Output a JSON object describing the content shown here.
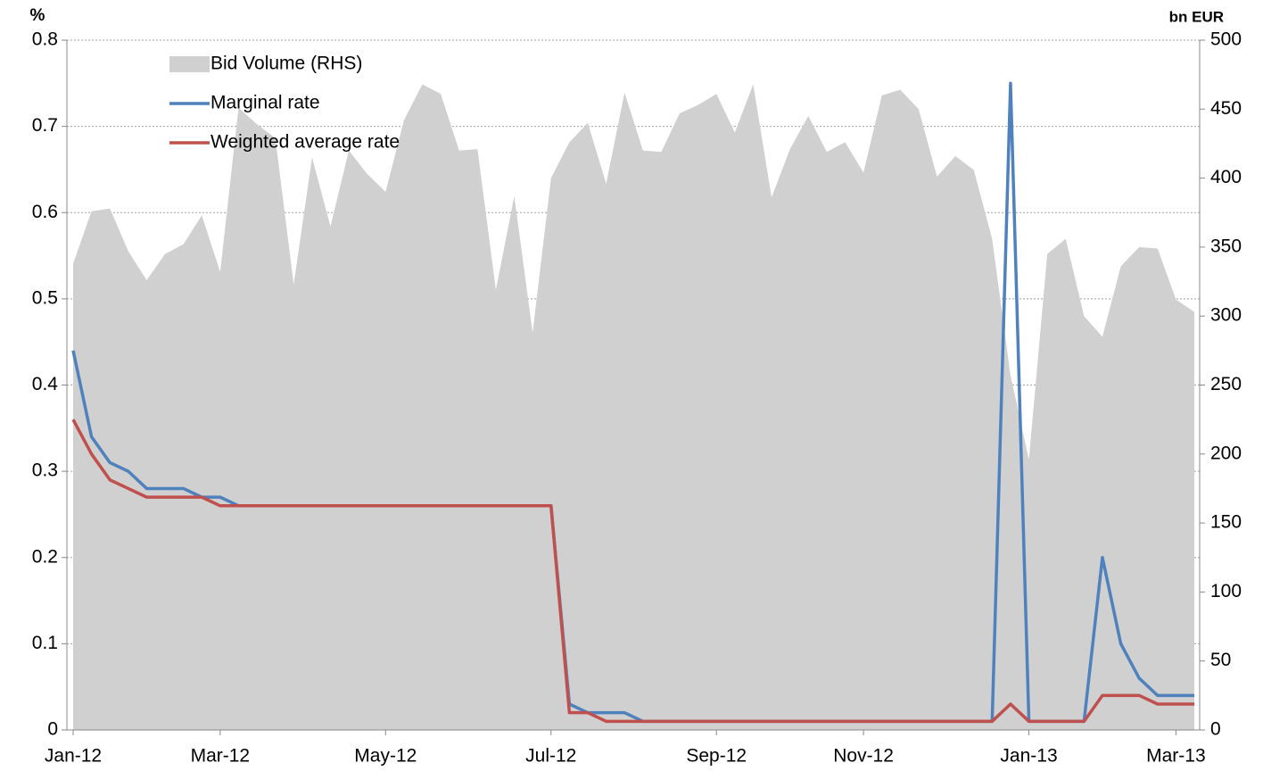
{
  "chart_data": {
    "type": "line",
    "ylabel": "%",
    "y2label": "bn EUR",
    "categories": [
      "Jan-12",
      null,
      null,
      null,
      null,
      null,
      null,
      null,
      "Mar-12",
      null,
      null,
      null,
      null,
      null,
      null,
      null,
      null,
      "May-12",
      null,
      null,
      null,
      null,
      null,
      null,
      null,
      null,
      "Jul-12",
      null,
      null,
      null,
      null,
      null,
      null,
      null,
      null,
      "Sep-12",
      null,
      null,
      null,
      null,
      null,
      null,
      null,
      "Nov-12",
      null,
      null,
      null,
      null,
      null,
      null,
      null,
      null,
      "Jan-13",
      null,
      null,
      null,
      null,
      null,
      null,
      null,
      "Mar-13",
      null
    ],
    "series": [
      {
        "name": "Bid Volume (RHS)",
        "type": "area",
        "axis": "y2",
        "color": "#d0d0d0",
        "values": [
          338,
          376,
          378,
          347,
          326,
          345,
          352,
          373,
          332,
          451,
          439,
          429,
          323,
          415,
          365,
          420,
          403,
          390,
          442,
          468,
          461,
          420,
          421,
          319,
          387,
          288,
          400,
          426,
          440,
          396,
          462,
          420,
          419,
          447,
          453,
          461,
          433,
          468,
          386,
          421,
          445,
          419,
          426,
          404,
          460,
          464,
          450,
          401,
          416,
          406,
          356,
          257,
          196,
          345,
          356,
          300,
          285,
          336,
          350,
          349,
          312,
          303
        ]
      },
      {
        "name": "Marginal rate",
        "color": "#4f81bd",
        "values": [
          0.44,
          0.34,
          0.31,
          0.3,
          0.28,
          0.28,
          0.28,
          0.27,
          0.27,
          0.26,
          0.26,
          0.26,
          0.26,
          0.26,
          0.26,
          0.26,
          0.26,
          0.26,
          0.26,
          0.26,
          0.26,
          0.26,
          0.26,
          0.26,
          0.26,
          0.26,
          0.26,
          0.03,
          0.02,
          0.02,
          0.02,
          0.01,
          0.01,
          0.01,
          0.01,
          0.01,
          0.01,
          0.01,
          0.01,
          0.01,
          0.01,
          0.01,
          0.01,
          0.01,
          0.01,
          0.01,
          0.01,
          0.01,
          0.01,
          0.01,
          0.01,
          0.75,
          0.01,
          0.01,
          0.01,
          0.01,
          0.2,
          0.1,
          0.06,
          0.04,
          0.04,
          0.04
        ]
      },
      {
        "name": "Weighted average rate",
        "color": "#c0504d",
        "values": [
          0.36,
          0.32,
          0.29,
          0.28,
          0.27,
          0.27,
          0.27,
          0.27,
          0.26,
          0.26,
          0.26,
          0.26,
          0.26,
          0.26,
          0.26,
          0.26,
          0.26,
          0.26,
          0.26,
          0.26,
          0.26,
          0.26,
          0.26,
          0.26,
          0.26,
          0.26,
          0.26,
          0.02,
          0.02,
          0.01,
          0.01,
          0.01,
          0.01,
          0.01,
          0.01,
          0.01,
          0.01,
          0.01,
          0.01,
          0.01,
          0.01,
          0.01,
          0.01,
          0.01,
          0.01,
          0.01,
          0.01,
          0.01,
          0.01,
          0.01,
          0.01,
          0.03,
          0.01,
          0.01,
          0.01,
          0.01,
          0.04,
          0.04,
          0.04,
          0.03,
          0.03,
          0.03
        ]
      }
    ],
    "ylim": [
      0,
      0.8
    ],
    "yticks": [
      0,
      0.1,
      0.2,
      0.3,
      0.4,
      0.5,
      0.6,
      0.7,
      0.8
    ],
    "y2lim": [
      0,
      500
    ],
    "y2ticks": [
      0,
      50,
      100,
      150,
      200,
      250,
      300,
      350,
      400,
      450,
      500
    ],
    "grid": true,
    "legend": "upper left"
  }
}
